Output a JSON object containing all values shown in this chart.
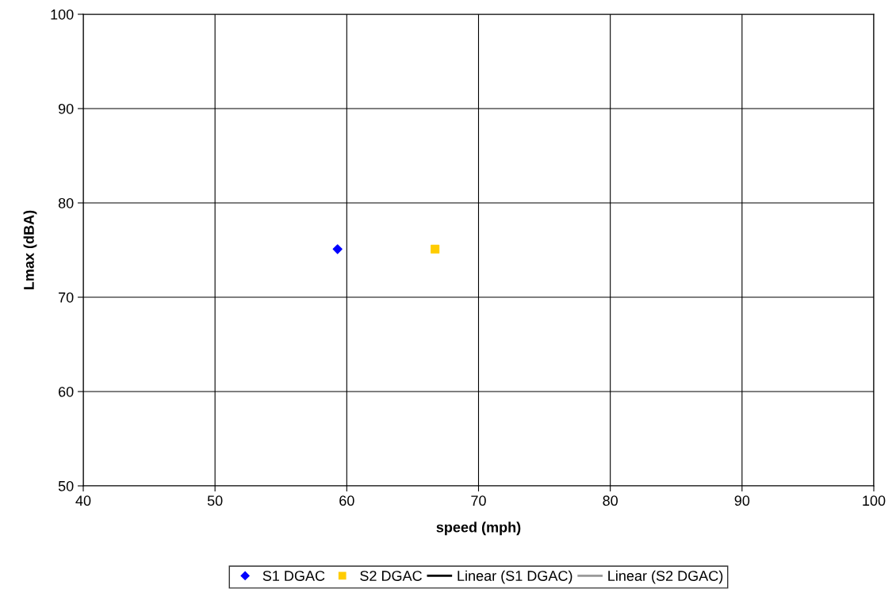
{
  "chart_data": {
    "type": "scatter",
    "xlabel": "speed (mph)",
    "ylabel": "Lmax (dBA)",
    "xlim": [
      40,
      100
    ],
    "xticks": [
      40,
      50,
      60,
      70,
      80,
      90,
      100
    ],
    "ylim": [
      50,
      100
    ],
    "yticks": [
      50,
      60,
      70,
      80,
      90,
      100
    ],
    "grid": true,
    "legend": "bottom",
    "series": [
      {
        "name": "S1 DGAC",
        "color": "#0000ff",
        "marker": "diamond",
        "x": [
          59.3
        ],
        "values": [
          75.1
        ]
      },
      {
        "name": "S2 DGAC",
        "color": "#ffcc00",
        "marker": "square",
        "x": [
          66.7
        ],
        "values": [
          75.1
        ]
      },
      {
        "name": "Linear (S1 DGAC)",
        "type": "line",
        "color": "#000000",
        "marker": "none"
      },
      {
        "name": "Linear (S2 DGAC)",
        "type": "line",
        "color": "#999999",
        "marker": "none"
      }
    ]
  }
}
